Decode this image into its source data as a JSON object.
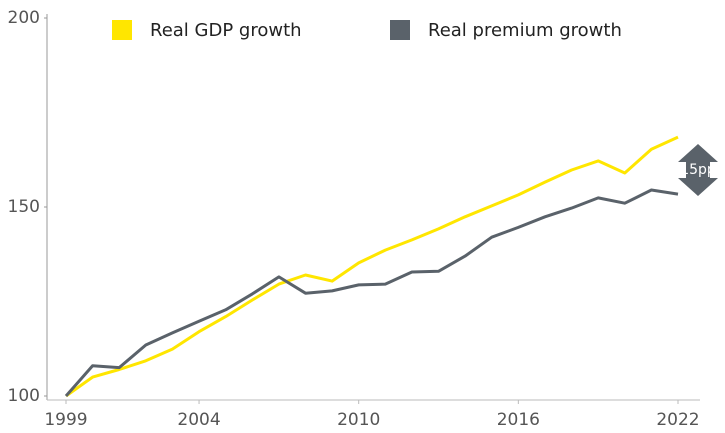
{
  "chart_data": {
    "type": "line",
    "x": [
      1999,
      2000,
      2001,
      2002,
      2003,
      2004,
      2005,
      2006,
      2007,
      2008,
      2009,
      2010,
      2011,
      2012,
      2013,
      2014,
      2015,
      2016,
      2017,
      2018,
      2019,
      2020,
      2021,
      2022
    ],
    "series": [
      {
        "name": "Real GDP growth",
        "color": "#ffe600",
        "values": [
          100,
          105,
          107,
          109.3,
          112.4,
          117,
          121,
          125.4,
          129.6,
          132,
          130.4,
          135.2,
          138.6,
          141.3,
          144.2,
          147.4,
          150.3,
          153.2,
          156.6,
          159.8,
          162.2,
          159,
          165.3,
          168.5
        ]
      },
      {
        "name": "Real premium growth",
        "color": "#5a626a",
        "values": [
          100,
          108,
          107.5,
          113.5,
          116.7,
          119.8,
          122.8,
          127,
          131.5,
          127.2,
          127.8,
          129.4,
          129.6,
          132.8,
          133,
          137,
          142,
          144.6,
          147.4,
          149.7,
          152.4,
          151,
          154.5,
          153.4
        ]
      }
    ],
    "xlim": [
      1999,
      2022
    ],
    "xticks": [
      1999,
      2004,
      2010,
      2016,
      2022
    ],
    "ylim": [
      100,
      200
    ],
    "yticks": [
      100,
      150,
      200
    ],
    "grid": false,
    "legend": "top",
    "annotations": [
      "15pp"
    ]
  }
}
